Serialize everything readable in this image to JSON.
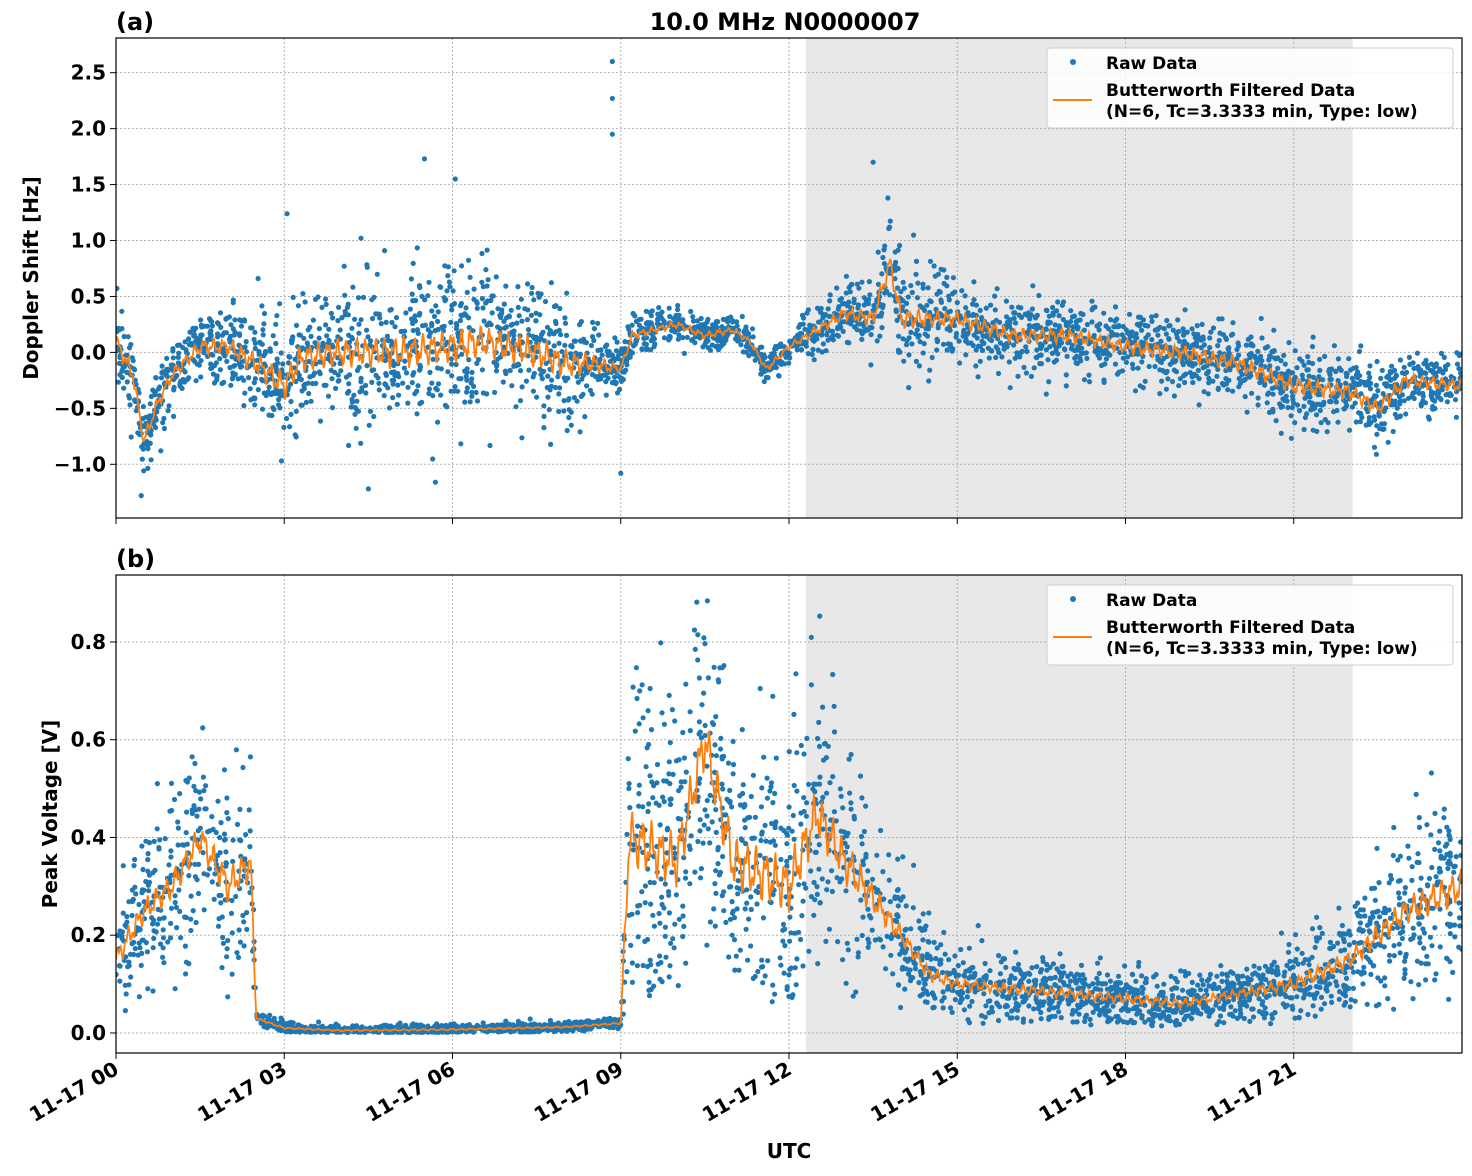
{
  "chart_data": [
    {
      "type": "scatter",
      "panel_label": "(a)",
      "title": "10.0 MHz N0000007",
      "ylabel": "Doppler Shift [Hz]",
      "xlabel": "",
      "x_unit": "hours UTC since 11-17 00",
      "xlim": [
        0,
        24
      ],
      "ylim": [
        -1.48,
        2.81
      ],
      "yticks": [
        -1.0,
        -0.5,
        0.0,
        0.5,
        1.0,
        1.5,
        2.0,
        2.5
      ],
      "ytick_labels": [
        "−1.0",
        "−0.5",
        "0.0",
        "0.5",
        "1.0",
        "1.5",
        "2.0",
        "2.5"
      ],
      "grid": true,
      "legend_placement": "upper-right",
      "shaded_span": [
        12.3,
        22.05
      ],
      "series": [
        {
          "name": "Raw Data",
          "kind": "points",
          "color": "#1f77b4",
          "center_hours": [
            0,
            0.3,
            0.5,
            0.7,
            1,
            1.5,
            2,
            2.5,
            3,
            3.3,
            4,
            5,
            6,
            6.5,
            7,
            7.5,
            8,
            8.5,
            9,
            9.2,
            10,
            10.5,
            11,
            11.3,
            11.6,
            12,
            12.5,
            13,
            13.5,
            13.8,
            14,
            15,
            16,
            17,
            18,
            19,
            20,
            21,
            22,
            22.5,
            23,
            24
          ],
          "spread_hours": [
            0,
            1,
            2,
            3,
            4,
            6,
            8,
            9,
            11,
            12,
            13,
            14,
            15,
            18,
            21,
            24
          ],
          "spread_values": [
            0.4,
            0.3,
            0.4,
            0.7,
            0.7,
            0.8,
            0.7,
            0.2,
            0.15,
            0.15,
            0.3,
            0.5,
            0.35,
            0.35,
            0.4,
            0.3
          ],
          "outliers": [
            [
              8.85,
              2.6
            ],
            [
              8.85,
              2.27
            ],
            [
              8.85,
              1.95
            ],
            [
              13.5,
              1.7
            ],
            [
              5.5,
              1.73
            ],
            [
              6.05,
              1.55
            ],
            [
              3.05,
              1.24
            ],
            [
              0.45,
              -1.28
            ],
            [
              4.5,
              -1.22
            ],
            [
              2.95,
              -0.97
            ],
            [
              9,
              -1.08
            ]
          ]
        },
        {
          "name": "Butterworth Filtered Data\n(N=6, Tc=3.3333 min, Type: low)",
          "kind": "line",
          "color": "#ff7f0e",
          "x": [
            0,
            0.3,
            0.5,
            0.7,
            1,
            1.5,
            2,
            2.5,
            3,
            3.3,
            4,
            5,
            6,
            6.5,
            7,
            7.5,
            8,
            8.5,
            9,
            9.2,
            10,
            10.5,
            11,
            11.3,
            11.6,
            12,
            12.5,
            13,
            13.5,
            13.8,
            14,
            15,
            16,
            17,
            18,
            19,
            20,
            21,
            22,
            22.5,
            23,
            24
          ],
          "y": [
            0.1,
            -0.2,
            -0.8,
            -0.5,
            -0.2,
            0.05,
            0.05,
            -0.1,
            -0.3,
            -0.05,
            0,
            0,
            0.05,
            0.1,
            0.05,
            0,
            -0.1,
            -0.1,
            -0.15,
            0.15,
            0.25,
            0.15,
            0.2,
            0.1,
            -0.15,
            0.05,
            0.2,
            0.35,
            0.3,
            0.8,
            0.3,
            0.3,
            0.15,
            0.15,
            0.05,
            0,
            -0.1,
            -0.3,
            -0.35,
            -0.5,
            -0.25,
            -0.3
          ]
        }
      ]
    },
    {
      "type": "scatter",
      "panel_label": "(b)",
      "title": "",
      "ylabel": "Peak Voltage [V]",
      "xlabel": "UTC",
      "xlim": [
        0,
        24
      ],
      "ylim": [
        -0.041,
        0.937
      ],
      "yticks": [
        0.0,
        0.2,
        0.4,
        0.6,
        0.8
      ],
      "ytick_labels": [
        "0.0",
        "0.2",
        "0.4",
        "0.6",
        "0.8"
      ],
      "xticks": [
        0,
        3,
        6,
        9,
        12,
        15,
        18,
        21
      ],
      "xtick_labels": [
        "11-17 00",
        "11-17 03",
        "11-17 06",
        "11-17 09",
        "11-17 12",
        "11-17 15",
        "11-17 18",
        "11-17 21"
      ],
      "grid": true,
      "legend_placement": "upper-right",
      "shaded_span": [
        12.3,
        22.05
      ],
      "series": [
        {
          "name": "Raw Data",
          "kind": "points",
          "color": "#1f77b4",
          "spread_hours": [
            0,
            2.4,
            2.5,
            9,
            9.15,
            12,
            13,
            14,
            15,
            20,
            22,
            24
          ],
          "spread_values": [
            0.12,
            0.2,
            0.01,
            0.01,
            0.3,
            0.3,
            0.25,
            0.1,
            0.06,
            0.05,
            0.1,
            0.2
          ]
        },
        {
          "name": "Butterworth Filtered Data\n(N=6, Tc=3.3333 min, Type: low)",
          "kind": "line",
          "color": "#ff7f0e",
          "x": [
            0,
            0.5,
            1,
            1.5,
            2,
            2.4,
            2.5,
            3,
            4,
            6,
            8,
            9,
            9.15,
            10,
            10.5,
            11,
            12,
            12.5,
            13,
            14,
            14.5,
            15,
            16,
            18,
            19,
            20,
            21,
            22,
            23,
            24
          ],
          "y": [
            0.15,
            0.25,
            0.3,
            0.4,
            0.3,
            0.35,
            0.03,
            0.01,
            0.005,
            0.007,
            0.012,
            0.02,
            0.4,
            0.35,
            0.6,
            0.35,
            0.3,
            0.45,
            0.35,
            0.2,
            0.12,
            0.1,
            0.09,
            0.07,
            0.06,
            0.08,
            0.1,
            0.15,
            0.25,
            0.3
          ]
        }
      ]
    }
  ],
  "legend": {
    "raw_label": "Raw Data",
    "filtered_label_line1": "Butterworth Filtered Data",
    "filtered_label_line2": "(N=6, Tc=3.3333 min, Type: low)"
  },
  "colors": {
    "raw": "#1f77b4",
    "filtered": "#ff7f0e",
    "shade": "#e8e8e8"
  }
}
